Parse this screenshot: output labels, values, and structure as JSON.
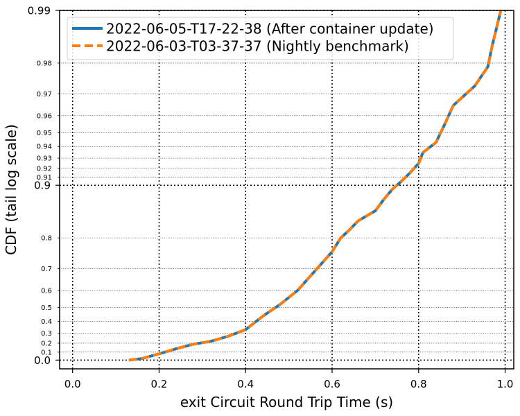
{
  "chart_data": {
    "type": "line",
    "title": "",
    "xlabel": "exit Circuit Round Trip Time (s)",
    "ylabel": "CDF (tail log scale)",
    "y_scale": "tail log (1 - p)",
    "xlim": [
      -0.03,
      1.02
    ],
    "x_ticks": [
      "0.0",
      "0.2",
      "0.4",
      "0.6",
      "0.8",
      "1.0"
    ],
    "y_major_ticks": [
      "0.0",
      "0.9",
      "0.99"
    ],
    "y_minor_ticks": [
      "0.1",
      "0.2",
      "0.3",
      "0.4",
      "0.5",
      "0.6",
      "0.7",
      "0.8",
      "0.91",
      "0.92",
      "0.93",
      "0.94",
      "0.95",
      "0.96",
      "0.97",
      "0.98"
    ],
    "grid": true,
    "legend_position": "top-left",
    "colors": {
      "series_1": "#1f77b4",
      "series_2": "#ff7f0e"
    },
    "series": [
      {
        "name": "2022-06-05-T17-22-38 (After container update)",
        "style": "solid",
        "x": [
          0.13,
          0.16,
          0.2,
          0.24,
          0.28,
          0.32,
          0.36,
          0.4,
          0.44,
          0.48,
          0.52,
          0.56,
          0.6,
          0.62,
          0.64,
          0.66,
          0.7,
          0.72,
          0.74,
          0.76,
          0.78,
          0.8,
          0.81,
          0.84,
          0.86,
          0.88,
          0.93,
          0.96,
          0.97,
          0.99
        ],
        "y": [
          0.0,
          0.02,
          0.08,
          0.14,
          0.19,
          0.22,
          0.27,
          0.33,
          0.44,
          0.52,
          0.6,
          0.69,
          0.76,
          0.8,
          0.82,
          0.84,
          0.86,
          0.88,
          0.895,
          0.905,
          0.915,
          0.925,
          0.935,
          0.943,
          0.955,
          0.965,
          0.973,
          0.979,
          0.984,
          0.99
        ]
      },
      {
        "name": "2022-06-03-T03-37-37 (Nightly benchmark)",
        "style": "dashed",
        "x": [
          0.13,
          0.16,
          0.2,
          0.24,
          0.28,
          0.32,
          0.36,
          0.4,
          0.44,
          0.48,
          0.52,
          0.56,
          0.6,
          0.62,
          0.64,
          0.66,
          0.7,
          0.72,
          0.74,
          0.76,
          0.78,
          0.8,
          0.81,
          0.84,
          0.86,
          0.88,
          0.93,
          0.96,
          0.97,
          0.99
        ],
        "y": [
          0.0,
          0.02,
          0.08,
          0.14,
          0.19,
          0.22,
          0.27,
          0.33,
          0.44,
          0.52,
          0.6,
          0.69,
          0.76,
          0.8,
          0.82,
          0.84,
          0.86,
          0.88,
          0.895,
          0.905,
          0.915,
          0.925,
          0.935,
          0.943,
          0.955,
          0.965,
          0.973,
          0.979,
          0.984,
          0.99
        ]
      }
    ]
  }
}
